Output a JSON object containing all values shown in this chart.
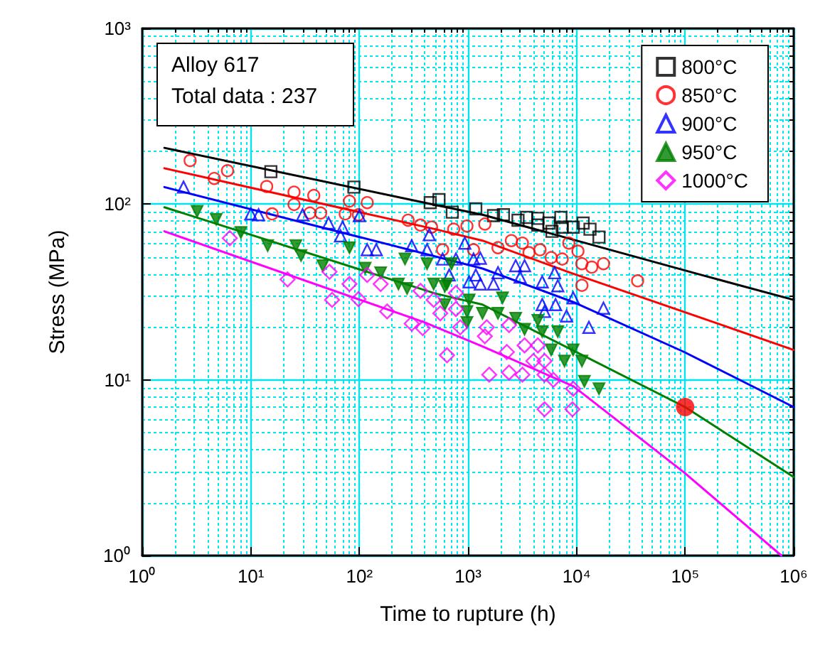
{
  "chart_data": {
    "type": "scatter",
    "xlabel": "Time to rupture (h)",
    "ylabel": "Stress (MPa)",
    "log": "xy",
    "grid": true,
    "legend": "top right",
    "xlim": [
      1,
      1000000
    ],
    "ylim": [
      1,
      1000
    ],
    "xticks": [
      {
        "value": 1,
        "label": "10⁰"
      },
      {
        "value": 10,
        "label": "10¹"
      },
      {
        "value": 100,
        "label": "10²"
      },
      {
        "value": 1000,
        "label": "10³"
      },
      {
        "value": 10000,
        "label": "10⁴"
      },
      {
        "value": 100000,
        "label": "10⁵"
      },
      {
        "value": 1000000,
        "label": "10⁶"
      },
      {
        "value": 2,
        "label": null
      },
      {
        "value": 3,
        "label": null
      },
      {
        "value": 4,
        "label": null
      },
      {
        "value": 5,
        "label": null
      },
      {
        "value": 6,
        "label": null
      },
      {
        "value": 7,
        "label": null
      },
      {
        "value": 8,
        "label": null
      },
      {
        "value": 9,
        "label": null
      },
      {
        "value": 20,
        "label": null
      },
      {
        "value": 30,
        "label": null
      },
      {
        "value": 40,
        "label": null
      },
      {
        "value": 50,
        "label": null
      },
      {
        "value": 60,
        "label": null
      },
      {
        "value": 70,
        "label": null
      },
      {
        "value": 80,
        "label": null
      },
      {
        "value": 90,
        "label": null
      },
      {
        "value": 200,
        "label": null
      },
      {
        "value": 300,
        "label": null
      },
      {
        "value": 400,
        "label": null
      },
      {
        "value": 500,
        "label": null
      },
      {
        "value": 600,
        "label": null
      },
      {
        "value": 700,
        "label": null
      },
      {
        "value": 800,
        "label": null
      },
      {
        "value": 900,
        "label": null
      },
      {
        "value": 2000,
        "label": null
      },
      {
        "value": 3000,
        "label": null
      },
      {
        "value": 4000,
        "label": null
      },
      {
        "value": 5000,
        "label": null
      },
      {
        "value": 6000,
        "label": null
      },
      {
        "value": 7000,
        "label": null
      },
      {
        "value": 8000,
        "label": null
      },
      {
        "value": 9000,
        "label": null
      },
      {
        "value": 20000,
        "label": null
      },
      {
        "value": 30000,
        "label": null
      },
      {
        "value": 40000,
        "label": null
      },
      {
        "value": 50000,
        "label": null
      },
      {
        "value": 60000,
        "label": null
      },
      {
        "value": 70000,
        "label": null
      },
      {
        "value": 80000,
        "label": null
      },
      {
        "value": 90000,
        "label": null
      },
      {
        "value": 200000,
        "label": null
      },
      {
        "value": 300000,
        "label": null
      },
      {
        "value": 400000,
        "label": null
      },
      {
        "value": 500000,
        "label": null
      },
      {
        "value": 600000,
        "label": null
      },
      {
        "value": 700000,
        "label": null
      },
      {
        "value": 800000,
        "label": null
      },
      {
        "value": 900000,
        "label": null
      }
    ],
    "yticks": [
      {
        "value": 1,
        "label": "10⁰"
      },
      {
        "value": 10,
        "label": "10¹"
      },
      {
        "value": 100,
        "label": "10²"
      },
      {
        "value": 1000,
        "label": "10³"
      },
      {
        "value": 2,
        "label": null
      },
      {
        "value": 3,
        "label": null
      },
      {
        "value": 4,
        "label": null
      },
      {
        "value": 5,
        "label": null
      },
      {
        "value": 6,
        "label": null
      },
      {
        "value": 7,
        "label": null
      },
      {
        "value": 8,
        "label": null
      },
      {
        "value": 9,
        "label": null
      },
      {
        "value": 20,
        "label": null
      },
      {
        "value": 30,
        "label": null
      },
      {
        "value": 40,
        "label": null
      },
      {
        "value": 50,
        "label": null
      },
      {
        "value": 60,
        "label": null
      },
      {
        "value": 70,
        "label": null
      },
      {
        "value": 80,
        "label": null
      },
      {
        "value": 90,
        "label": null
      },
      {
        "value": 200,
        "label": null
      },
      {
        "value": 300,
        "label": null
      },
      {
        "value": 400,
        "label": null
      },
      {
        "value": 500,
        "label": null
      },
      {
        "value": 600,
        "label": null
      },
      {
        "value": 700,
        "label": null
      },
      {
        "value": 800,
        "label": null
      },
      {
        "value": 900,
        "label": null
      }
    ],
    "annotations": [
      "Alloy 617",
      "Total data : 237"
    ],
    "series": [
      {
        "name": "800°C",
        "color": "#000000",
        "marker": "square",
        "x": [
          15.3,
          89,
          449,
          541,
          717,
          1180,
          1720,
          2120,
          2890,
          3470,
          4400,
          4400,
          5560,
          5940,
          7170,
          7380,
          9330,
          11500,
          13300,
          16100
        ],
        "values": [
          153,
          125,
          102,
          106,
          90,
          94,
          86,
          87,
          81,
          84,
          83,
          76,
          78,
          70,
          84,
          74,
          74,
          78,
          72,
          65
        ]
      },
      {
        "name": "850°C",
        "color": "#ff0000",
        "marker": "circle",
        "x": [
          2.76,
          4.6,
          6.1,
          14,
          25,
          38,
          25,
          15.7,
          35,
          44,
          81,
          118,
          74,
          98,
          281,
          365,
          462,
          738,
          978,
          584,
          1125,
          1430,
          1890,
          2510,
          3170,
          3650,
          4610,
          5840,
          7380,
          8490,
          10300,
          11200,
          13800,
          17700,
          11200,
          36500
        ],
        "values": [
          177,
          140,
          155,
          126,
          117,
          112,
          99.5,
          88,
          89,
          89,
          104,
          102,
          88,
          87,
          81,
          76,
          74,
          72,
          75,
          55,
          55,
          77,
          56.5,
          62,
          60,
          53,
          55,
          49.6,
          48.7,
          60,
          54,
          45.8,
          43.8,
          45.8,
          34.5,
          36.6
        ]
      },
      {
        "name": "900°C",
        "color": "#0000ff",
        "marker": "triangle",
        "x": [
          2.4,
          10,
          11.8,
          30,
          52,
          70,
          67,
          100,
          118,
          143,
          303,
          440,
          420,
          584,
          935,
          774,
          1125,
          672,
          1025,
          1180,
          1300,
          1890,
          1300,
          1720,
          2750,
          3320,
          3020,
          4830,
          6280,
          6410,
          4830,
          9310,
          8090,
          17700,
          6720,
          5070,
          13000
        ],
        "values": [
          125,
          88,
          87,
          87,
          78,
          74,
          66,
          86,
          55,
          55,
          58,
          67,
          55,
          48.7,
          60,
          48.7,
          48.7,
          39.5,
          36.1,
          39.5,
          49.2,
          40.7,
          35.1,
          35.1,
          44.6,
          44.6,
          38.4,
          36.1,
          40.7,
          26.8,
          26.8,
          29.3,
          23.1,
          25.6,
          34.3,
          24.5,
          19.9
        ]
      },
      {
        "name": "950°C",
        "color": "#008000",
        "marker": "triangle-down",
        "x": [
          3.2,
          4.8,
          8.1,
          14.3,
          26,
          29,
          81,
          46,
          113,
          157,
          229,
          275,
          263,
          420,
          483,
          641,
          705,
          1025,
          1360,
          612,
          612,
          978,
          2080,
          1890,
          2750,
          3320,
          4400,
          4830,
          6720,
          5840,
          7740,
          9310,
          11200,
          11800,
          16100,
          978
        ],
        "values": [
          91,
          82,
          69,
          58,
          58,
          51,
          56.5,
          44.6,
          43.2,
          40.7,
          35.1,
          33.1,
          48.7,
          45.8,
          35.1,
          35.1,
          45.8,
          28.5,
          23.9,
          34.1,
          26.8,
          24.5,
          29.3,
          23.9,
          22.4,
          19.4,
          21.8,
          18.8,
          18.8,
          14.8,
          12.8,
          14.8,
          12.8,
          9.8,
          8.9,
          21.2
        ]
      },
      {
        "name": "1000°C",
        "color": "#ff00ff",
        "marker": "diamond",
        "x": [
          6.4,
          21.8,
          53,
          56,
          98,
          118,
          157,
          180,
          365,
          81,
          303,
          383,
          483,
          641,
          556,
          774,
          849,
          774,
          1490,
          1430,
          2390,
          3320,
          4400,
          4000,
          5070,
          1570,
          2390,
          3170,
          5070,
          6110,
          9310,
          5070,
          9160,
          2280
        ],
        "values": [
          64,
          37.3,
          41.2,
          28.5,
          28.8,
          39.5,
          35.1,
          24.5,
          32.1,
          35.1,
          20.9,
          19.7,
          28.5,
          13.8,
          23.9,
          25.3,
          19.9,
          31.2,
          19.9,
          17.7,
          20.5,
          15.7,
          15.7,
          12.8,
          12.8,
          10.7,
          11,
          10.7,
          10.7,
          10,
          8.9,
          6.8,
          6.8,
          14.4
        ]
      },
      {
        "type": "line",
        "color": "#000000",
        "marker": "none",
        "line_style": "solid",
        "x": [
          1.6,
          500,
          1360,
          142000,
          1000000
        ],
        "values": [
          209,
          99,
          87,
          39.5,
          28.5
        ]
      },
      {
        "type": "line",
        "color": "#ff0000",
        "marker": "none",
        "line_style": "solid",
        "x": [
          1.6,
          500,
          1360,
          8490,
          142000,
          1000000
        ],
        "values": [
          160,
          72,
          62,
          41,
          22.5,
          14.8
        ]
      },
      {
        "type": "line",
        "color": "#0000ff",
        "marker": "none",
        "line_style": "solid",
        "x": [
          1.6,
          1360,
          9330,
          98000,
          1000000
        ],
        "values": [
          125,
          43,
          27.7,
          14.4,
          7
        ]
      },
      {
        "type": "line",
        "color": "#008000",
        "marker": "none",
        "line_style": "solid",
        "x": [
          1.6,
          500,
          1360,
          100000,
          1000000
        ],
        "values": [
          96,
          31,
          26.8,
          7,
          2.8
        ]
      },
      {
        "type": "line",
        "color": "#ff00ff",
        "marker": "none",
        "line_style": "solid",
        "x": [
          1.6,
          400,
          1360,
          9330,
          98000,
          770000
        ],
        "values": [
          70,
          21.2,
          15.5,
          9.2,
          2.97,
          1
        ]
      },
      {
        "type": "bubble",
        "color": "#ff0000",
        "x": [
          100000
        ],
        "values": [
          7
        ],
        "sizes": [
          1
        ]
      }
    ]
  }
}
